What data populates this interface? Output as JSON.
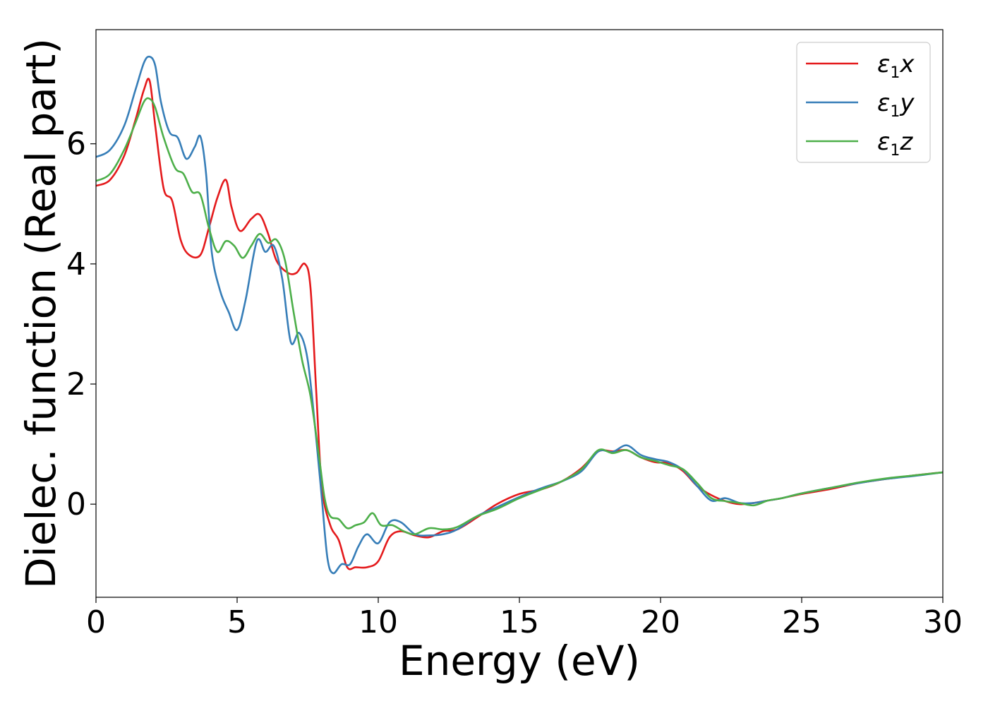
{
  "chart_data": {
    "type": "line",
    "title": "",
    "xlabel": "Energy (eV)",
    "ylabel": "Dielec. function (Real part)",
    "xlim": [
      0,
      30
    ],
    "ylim": [
      -1.55,
      7.9
    ],
    "xticks": [
      0,
      5,
      10,
      15,
      20,
      25,
      30
    ],
    "yticks": [
      0,
      2,
      4,
      6
    ],
    "grid": false,
    "legend_position": "top-right",
    "series": [
      {
        "name": "ε1x",
        "legend_main": "ε",
        "legend_sub": "1",
        "legend_var": "x",
        "color": "#e41a1c",
        "x": [
          0,
          0.5,
          1.0,
          1.4,
          1.7,
          1.9,
          2.1,
          2.4,
          2.7,
          3.0,
          3.3,
          3.7,
          4.0,
          4.3,
          4.6,
          4.8,
          5.1,
          5.5,
          5.8,
          6.1,
          6.4,
          6.8,
          7.1,
          7.4,
          7.6,
          7.8,
          8.0,
          8.3,
          8.6,
          8.9,
          9.2,
          9.6,
          10.0,
          10.4,
          10.8,
          11.3,
          11.8,
          12.3,
          12.8,
          13.5,
          14.2,
          15.0,
          15.8,
          16.5,
          17.2,
          17.8,
          18.3,
          18.8,
          19.3,
          19.8,
          20.3,
          20.8,
          21.3,
          21.8,
          22.3,
          22.8,
          23.3,
          23.8,
          24.3,
          25.0,
          26.0,
          27.0,
          28.0,
          29.0,
          30.0
        ],
        "y": [
          5.3,
          5.4,
          5.8,
          6.4,
          6.9,
          7.05,
          6.3,
          5.25,
          5.05,
          4.4,
          4.15,
          4.15,
          4.6,
          5.1,
          5.4,
          4.95,
          4.55,
          4.75,
          4.82,
          4.5,
          4.05,
          3.85,
          3.85,
          4.0,
          3.6,
          1.9,
          0.3,
          -0.35,
          -0.6,
          -1.05,
          -1.05,
          -1.05,
          -0.95,
          -0.55,
          -0.45,
          -0.52,
          -0.55,
          -0.45,
          -0.42,
          -0.22,
          0.0,
          0.17,
          0.25,
          0.38,
          0.6,
          0.88,
          0.88,
          0.9,
          0.78,
          0.7,
          0.68,
          0.55,
          0.3,
          0.15,
          0.05,
          0.0,
          0.02,
          0.06,
          0.1,
          0.17,
          0.25,
          0.35,
          0.42,
          0.48,
          0.53
        ]
      },
      {
        "name": "ε1y",
        "legend_main": "ε",
        "legend_sub": "1",
        "legend_var": "y",
        "color": "#377eb8",
        "x": [
          0,
          0.5,
          1.0,
          1.4,
          1.7,
          1.9,
          2.1,
          2.3,
          2.6,
          2.9,
          3.2,
          3.5,
          3.7,
          3.9,
          4.1,
          4.4,
          4.7,
          5.0,
          5.3,
          5.7,
          6.0,
          6.3,
          6.6,
          6.9,
          7.2,
          7.5,
          7.8,
          8.0,
          8.2,
          8.4,
          8.7,
          9.0,
          9.3,
          9.6,
          10.0,
          10.4,
          10.8,
          11.3,
          11.8,
          12.3,
          12.8,
          13.5,
          14.2,
          15.0,
          15.8,
          16.5,
          17.2,
          17.8,
          18.3,
          18.8,
          19.3,
          19.8,
          20.3,
          20.8,
          21.3,
          21.8,
          22.3,
          22.8,
          23.3,
          23.8,
          24.3,
          25.0,
          26.0,
          27.0,
          28.0,
          29.0,
          30.0
        ],
        "y": [
          5.78,
          5.9,
          6.3,
          6.9,
          7.35,
          7.45,
          7.3,
          6.7,
          6.2,
          6.1,
          5.75,
          5.95,
          6.12,
          5.5,
          4.2,
          3.55,
          3.2,
          2.9,
          3.4,
          4.38,
          4.2,
          4.3,
          3.75,
          2.7,
          2.85,
          2.4,
          1.1,
          0.1,
          -0.9,
          -1.15,
          -1.0,
          -1.0,
          -0.7,
          -0.5,
          -0.65,
          -0.3,
          -0.3,
          -0.5,
          -0.52,
          -0.5,
          -0.42,
          -0.2,
          -0.05,
          0.12,
          0.27,
          0.38,
          0.55,
          0.88,
          0.87,
          0.98,
          0.82,
          0.75,
          0.7,
          0.57,
          0.3,
          0.06,
          0.1,
          0.02,
          0.02,
          0.06,
          0.1,
          0.18,
          0.27,
          0.35,
          0.42,
          0.47,
          0.53
        ]
      },
      {
        "name": "ε1z",
        "legend_main": "ε",
        "legend_sub": "1",
        "legend_var": "z",
        "color": "#4daf4a",
        "x": [
          0,
          0.5,
          1.0,
          1.4,
          1.7,
          1.9,
          2.1,
          2.4,
          2.8,
          3.1,
          3.4,
          3.7,
          4.0,
          4.3,
          4.6,
          4.9,
          5.2,
          5.5,
          5.8,
          6.1,
          6.4,
          6.7,
          7.0,
          7.3,
          7.6,
          7.9,
          8.1,
          8.3,
          8.6,
          8.9,
          9.2,
          9.5,
          9.8,
          10.1,
          10.5,
          10.9,
          11.3,
          11.8,
          12.3,
          12.8,
          13.5,
          14.2,
          15.0,
          15.8,
          16.5,
          17.2,
          17.8,
          18.3,
          18.8,
          19.3,
          19.8,
          20.3,
          20.8,
          21.3,
          21.8,
          22.3,
          22.8,
          23.3,
          23.8,
          24.3,
          25.0,
          26.0,
          27.0,
          28.0,
          29.0,
          30.0
        ],
        "y": [
          5.38,
          5.5,
          5.9,
          6.35,
          6.7,
          6.75,
          6.6,
          6.1,
          5.6,
          5.5,
          5.2,
          5.15,
          4.6,
          4.2,
          4.38,
          4.3,
          4.1,
          4.3,
          4.5,
          4.35,
          4.4,
          4.05,
          3.2,
          2.4,
          1.8,
          0.8,
          0.1,
          -0.2,
          -0.25,
          -0.4,
          -0.35,
          -0.3,
          -0.15,
          -0.35,
          -0.35,
          -0.45,
          -0.5,
          -0.4,
          -0.42,
          -0.38,
          -0.2,
          -0.08,
          0.1,
          0.25,
          0.38,
          0.58,
          0.9,
          0.85,
          0.9,
          0.78,
          0.72,
          0.65,
          0.58,
          0.35,
          0.1,
          0.05,
          0.02,
          -0.02,
          0.06,
          0.1,
          0.18,
          0.27,
          0.36,
          0.43,
          0.48,
          0.53
        ]
      }
    ]
  }
}
